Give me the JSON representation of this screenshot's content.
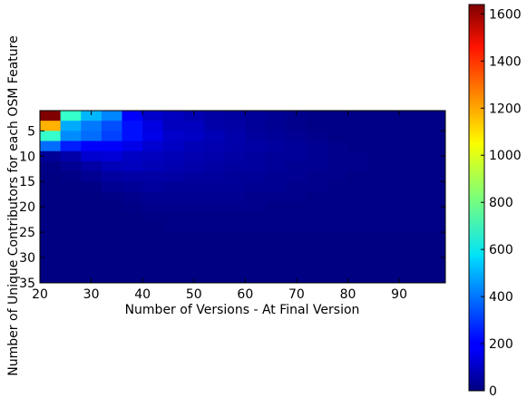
{
  "chart_data": {
    "type": "heatmap",
    "title": "",
    "xlabel": "Number of Versions - At Final Version",
    "ylabel": "Number of Unique Contributors for each OSM Feature",
    "x_ticks": [
      "20",
      "30",
      "40",
      "50",
      "60",
      "70",
      "80",
      "90"
    ],
    "y_ticks": [
      "5",
      "10",
      "15",
      "20",
      "25",
      "30",
      "35"
    ],
    "colorbar_ticks": [
      "0",
      "200",
      "400",
      "600",
      "800",
      "1000",
      "1200",
      "1400",
      "1600"
    ],
    "xlim": [
      20,
      99
    ],
    "ylim": [
      35,
      1
    ],
    "colorbar_range": [
      0,
      1640
    ],
    "colormap": "jet",
    "grid": false,
    "cell_width": 4,
    "cell_height": 2,
    "values": [
      [
        1640,
        700,
        500,
        420,
        200,
        120,
        100,
        80,
        60,
        50,
        40,
        30,
        20,
        10,
        10,
        10,
        10,
        10,
        10,
        10
      ],
      [
        1150,
        480,
        400,
        330,
        230,
        160,
        100,
        100,
        70,
        60,
        40,
        30,
        20,
        10,
        10,
        10,
        10,
        10,
        10,
        10
      ],
      [
        700,
        430,
        380,
        310,
        230,
        170,
        120,
        110,
        90,
        70,
        50,
        40,
        30,
        20,
        10,
        10,
        10,
        10,
        10,
        10
      ],
      [
        380,
        250,
        200,
        200,
        170,
        130,
        110,
        90,
        80,
        70,
        60,
        50,
        40,
        30,
        20,
        10,
        10,
        10,
        10,
        10
      ],
      [
        40,
        70,
        130,
        140,
        110,
        100,
        90,
        80,
        70,
        60,
        50,
        40,
        40,
        30,
        20,
        20,
        10,
        10,
        10,
        10
      ],
      [
        10,
        30,
        60,
        90,
        100,
        90,
        80,
        70,
        60,
        50,
        50,
        40,
        30,
        30,
        20,
        20,
        10,
        10,
        10,
        10
      ],
      [
        5,
        10,
        30,
        50,
        60,
        60,
        60,
        50,
        50,
        40,
        40,
        30,
        30,
        20,
        20,
        10,
        10,
        10,
        10,
        10
      ],
      [
        5,
        5,
        10,
        30,
        40,
        50,
        40,
        40,
        40,
        40,
        30,
        30,
        20,
        20,
        10,
        10,
        10,
        10,
        10,
        10
      ],
      [
        5,
        5,
        5,
        10,
        20,
        30,
        30,
        30,
        30,
        30,
        20,
        20,
        20,
        10,
        10,
        10,
        10,
        10,
        10,
        10
      ],
      [
        5,
        5,
        5,
        5,
        10,
        20,
        20,
        20,
        20,
        20,
        20,
        10,
        10,
        10,
        10,
        10,
        10,
        10,
        10,
        10
      ],
      [
        5,
        5,
        5,
        5,
        5,
        10,
        10,
        10,
        10,
        10,
        10,
        10,
        10,
        10,
        10,
        10,
        10,
        10,
        10,
        10
      ],
      [
        5,
        5,
        5,
        5,
        5,
        5,
        10,
        10,
        10,
        10,
        10,
        10,
        10,
        10,
        10,
        10,
        10,
        10,
        10,
        10
      ],
      [
        5,
        5,
        5,
        5,
        5,
        5,
        5,
        5,
        5,
        5,
        5,
        5,
        5,
        5,
        5,
        5,
        5,
        5,
        5,
        5
      ],
      [
        5,
        5,
        5,
        5,
        5,
        5,
        5,
        5,
        5,
        5,
        5,
        5,
        5,
        5,
        5,
        5,
        5,
        5,
        5,
        5
      ],
      [
        5,
        5,
        5,
        5,
        5,
        5,
        5,
        5,
        5,
        5,
        5,
        5,
        5,
        5,
        5,
        5,
        5,
        5,
        5,
        5
      ],
      [
        5,
        5,
        5,
        5,
        5,
        5,
        5,
        5,
        5,
        5,
        5,
        5,
        5,
        5,
        5,
        5,
        5,
        5,
        5,
        5
      ],
      [
        5,
        5,
        5,
        5,
        5,
        5,
        5,
        5,
        5,
        5,
        5,
        5,
        5,
        5,
        5,
        5,
        5,
        5,
        5,
        5
      ]
    ]
  }
}
